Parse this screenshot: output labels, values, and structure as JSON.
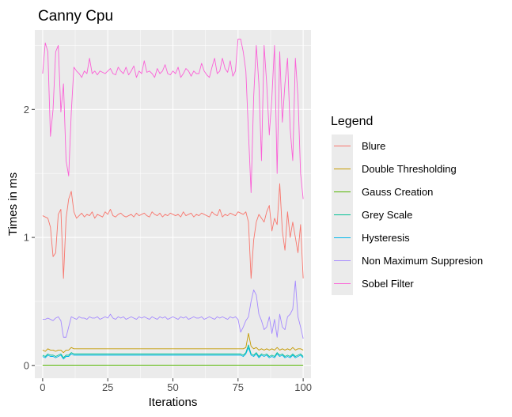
{
  "chart_data": {
    "type": "line",
    "title": "Canny Cpu",
    "xlabel": "Iterations",
    "ylabel": "Times in ms",
    "xlim": [
      -3,
      103
    ],
    "ylim": [
      -0.1,
      2.62
    ],
    "x_ticks": [
      0,
      25,
      50,
      75,
      100
    ],
    "y_ticks": [
      0,
      1,
      2
    ],
    "grid": true,
    "legend": {
      "title": "Legend",
      "position": "right"
    },
    "x": [
      0,
      1,
      2,
      3,
      4,
      5,
      6,
      7,
      8,
      9,
      10,
      11,
      12,
      13,
      14,
      15,
      16,
      17,
      18,
      19,
      20,
      21,
      22,
      23,
      24,
      25,
      26,
      27,
      28,
      29,
      30,
      31,
      32,
      33,
      34,
      35,
      36,
      37,
      38,
      39,
      40,
      41,
      42,
      43,
      44,
      45,
      46,
      47,
      48,
      49,
      50,
      51,
      52,
      53,
      54,
      55,
      56,
      57,
      58,
      59,
      60,
      61,
      62,
      63,
      64,
      65,
      66,
      67,
      68,
      69,
      70,
      71,
      72,
      73,
      74,
      75,
      76,
      77,
      78,
      79,
      80,
      81,
      82,
      83,
      84,
      85,
      86,
      87,
      88,
      89,
      90,
      91,
      92,
      93,
      94,
      95,
      96,
      97,
      98,
      99,
      100
    ],
    "series": [
      {
        "name": "Blure",
        "color": "#F8766D",
        "values": [
          1.17,
          1.16,
          1.15,
          1.08,
          0.85,
          0.88,
          1.18,
          1.22,
          0.68,
          1.15,
          1.3,
          1.36,
          1.2,
          1.15,
          1.17,
          1.19,
          1.16,
          1.18,
          1.17,
          1.2,
          1.15,
          1.18,
          1.17,
          1.16,
          1.2,
          1.18,
          1.22,
          1.17,
          1.16,
          1.18,
          1.19,
          1.17,
          1.16,
          1.17,
          1.18,
          1.16,
          1.19,
          1.17,
          1.18,
          1.19,
          1.17,
          1.16,
          1.2,
          1.18,
          1.17,
          1.19,
          1.16,
          1.18,
          1.17,
          1.19,
          1.18,
          1.17,
          1.18,
          1.16,
          1.2,
          1.17,
          1.18,
          1.19,
          1.16,
          1.18,
          1.17,
          1.19,
          1.18,
          1.17,
          1.16,
          1.2,
          1.18,
          1.17,
          1.22,
          1.16,
          1.18,
          1.17,
          1.19,
          1.18,
          1.17,
          1.2,
          1.19,
          1.18,
          1.2,
          1.12,
          0.68,
          0.98,
          1.12,
          1.18,
          1.15,
          1.12,
          1.2,
          1.25,
          1.05,
          1.15,
          1.1,
          1.42,
          1.05,
          0.9,
          1.2,
          1.0,
          1.12,
          1.0,
          0.88,
          1.1,
          0.68
        ]
      },
      {
        "name": "Double Thresholding",
        "color": "#C49A00",
        "values": [
          0.12,
          0.11,
          0.13,
          0.12,
          0.12,
          0.11,
          0.12,
          0.12,
          0.1,
          0.12,
          0.12,
          0.14,
          0.13,
          0.13,
          0.13,
          0.13,
          0.13,
          0.13,
          0.13,
          0.13,
          0.13,
          0.13,
          0.13,
          0.13,
          0.13,
          0.13,
          0.13,
          0.13,
          0.13,
          0.13,
          0.13,
          0.13,
          0.13,
          0.13,
          0.13,
          0.13,
          0.13,
          0.13,
          0.13,
          0.13,
          0.13,
          0.13,
          0.13,
          0.13,
          0.13,
          0.13,
          0.13,
          0.13,
          0.13,
          0.13,
          0.13,
          0.13,
          0.13,
          0.13,
          0.13,
          0.13,
          0.13,
          0.13,
          0.13,
          0.13,
          0.13,
          0.13,
          0.13,
          0.13,
          0.13,
          0.13,
          0.13,
          0.13,
          0.13,
          0.13,
          0.13,
          0.13,
          0.13,
          0.13,
          0.13,
          0.13,
          0.13,
          0.13,
          0.14,
          0.25,
          0.15,
          0.13,
          0.14,
          0.12,
          0.13,
          0.12,
          0.13,
          0.12,
          0.13,
          0.12,
          0.14,
          0.12,
          0.13,
          0.12,
          0.13,
          0.12,
          0.14,
          0.12,
          0.13,
          0.13,
          0.12
        ]
      },
      {
        "name": "Gauss Creation",
        "color": "#53B400",
        "values": [
          0.002,
          0.002,
          0.002,
          0.002,
          0.002,
          0.002,
          0.002,
          0.002,
          0.002,
          0.002,
          0.002,
          0.002,
          0.002,
          0.002,
          0.002,
          0.002,
          0.002,
          0.002,
          0.002,
          0.002,
          0.002,
          0.002,
          0.002,
          0.002,
          0.002,
          0.002,
          0.002,
          0.002,
          0.002,
          0.002,
          0.002,
          0.002,
          0.002,
          0.002,
          0.002,
          0.002,
          0.002,
          0.002,
          0.002,
          0.002,
          0.002,
          0.002,
          0.002,
          0.002,
          0.002,
          0.002,
          0.002,
          0.002,
          0.002,
          0.002,
          0.002,
          0.002,
          0.002,
          0.002,
          0.002,
          0.002,
          0.002,
          0.002,
          0.002,
          0.002,
          0.002,
          0.002,
          0.002,
          0.002,
          0.002,
          0.002,
          0.002,
          0.002,
          0.002,
          0.002,
          0.002,
          0.002,
          0.002,
          0.002,
          0.002,
          0.002,
          0.002,
          0.002,
          0.002,
          0.002,
          0.002,
          0.002,
          0.002,
          0.002,
          0.002,
          0.002,
          0.002,
          0.002,
          0.002,
          0.002,
          0.002,
          0.002,
          0.002,
          0.002,
          0.002,
          0.002,
          0.002,
          0.002,
          0.002,
          0.002,
          0.002
        ]
      },
      {
        "name": "Grey Scale",
        "color": "#00C094",
        "values": [
          0.08,
          0.07,
          0.09,
          0.08,
          0.08,
          0.07,
          0.08,
          0.09,
          0.06,
          0.08,
          0.08,
          0.1,
          0.09,
          0.09,
          0.09,
          0.09,
          0.09,
          0.09,
          0.09,
          0.09,
          0.09,
          0.09,
          0.09,
          0.09,
          0.09,
          0.09,
          0.09,
          0.09,
          0.09,
          0.09,
          0.09,
          0.09,
          0.09,
          0.09,
          0.09,
          0.09,
          0.09,
          0.09,
          0.09,
          0.09,
          0.09,
          0.09,
          0.09,
          0.09,
          0.09,
          0.09,
          0.09,
          0.09,
          0.09,
          0.09,
          0.09,
          0.09,
          0.09,
          0.09,
          0.09,
          0.09,
          0.09,
          0.09,
          0.09,
          0.09,
          0.09,
          0.09,
          0.09,
          0.09,
          0.09,
          0.09,
          0.09,
          0.09,
          0.09,
          0.09,
          0.09,
          0.09,
          0.09,
          0.09,
          0.09,
          0.09,
          0.09,
          0.08,
          0.1,
          0.16,
          0.09,
          0.08,
          0.1,
          0.07,
          0.09,
          0.08,
          0.09,
          0.07,
          0.08,
          0.07,
          0.1,
          0.08,
          0.09,
          0.07,
          0.08,
          0.07,
          0.09,
          0.07,
          0.08,
          0.09,
          0.07
        ]
      },
      {
        "name": "Hysteresis",
        "color": "#00B6EB",
        "values": [
          0.07,
          0.06,
          0.08,
          0.07,
          0.07,
          0.06,
          0.07,
          0.08,
          0.05,
          0.07,
          0.07,
          0.09,
          0.08,
          0.08,
          0.08,
          0.08,
          0.08,
          0.08,
          0.08,
          0.08,
          0.08,
          0.08,
          0.08,
          0.08,
          0.08,
          0.08,
          0.08,
          0.08,
          0.08,
          0.08,
          0.08,
          0.08,
          0.08,
          0.08,
          0.08,
          0.08,
          0.08,
          0.08,
          0.08,
          0.08,
          0.08,
          0.08,
          0.08,
          0.08,
          0.08,
          0.08,
          0.08,
          0.08,
          0.08,
          0.08,
          0.08,
          0.08,
          0.08,
          0.08,
          0.08,
          0.08,
          0.08,
          0.08,
          0.08,
          0.08,
          0.08,
          0.08,
          0.08,
          0.08,
          0.08,
          0.08,
          0.08,
          0.08,
          0.08,
          0.08,
          0.08,
          0.08,
          0.08,
          0.08,
          0.08,
          0.08,
          0.08,
          0.07,
          0.09,
          0.14,
          0.08,
          0.07,
          0.09,
          0.06,
          0.08,
          0.07,
          0.08,
          0.06,
          0.07,
          0.06,
          0.09,
          0.07,
          0.08,
          0.06,
          0.07,
          0.06,
          0.08,
          0.06,
          0.07,
          0.08,
          0.06
        ]
      },
      {
        "name": "Non Maximum Suppresion",
        "color": "#A58AFF",
        "values": [
          0.36,
          0.36,
          0.37,
          0.36,
          0.35,
          0.37,
          0.38,
          0.35,
          0.22,
          0.22,
          0.3,
          0.38,
          0.37,
          0.36,
          0.38,
          0.37,
          0.37,
          0.36,
          0.38,
          0.37,
          0.37,
          0.38,
          0.36,
          0.37,
          0.38,
          0.37,
          0.4,
          0.37,
          0.36,
          0.38,
          0.37,
          0.38,
          0.36,
          0.37,
          0.38,
          0.37,
          0.36,
          0.38,
          0.37,
          0.38,
          0.37,
          0.36,
          0.38,
          0.37,
          0.36,
          0.38,
          0.37,
          0.38,
          0.36,
          0.37,
          0.38,
          0.37,
          0.36,
          0.38,
          0.37,
          0.38,
          0.36,
          0.37,
          0.38,
          0.37,
          0.37,
          0.38,
          0.36,
          0.37,
          0.38,
          0.37,
          0.36,
          0.38,
          0.37,
          0.38,
          0.37,
          0.36,
          0.38,
          0.37,
          0.38,
          0.36,
          0.26,
          0.3,
          0.35,
          0.38,
          0.5,
          0.59,
          0.55,
          0.4,
          0.35,
          0.28,
          0.3,
          0.38,
          0.25,
          0.36,
          0.22,
          0.4,
          0.3,
          0.28,
          0.38,
          0.4,
          0.44,
          0.66,
          0.38,
          0.3,
          0.21
        ]
      },
      {
        "name": "Sobel Filter",
        "color": "#FB61D7",
        "values": [
          2.28,
          2.52,
          2.45,
          1.79,
          2.0,
          2.45,
          2.5,
          1.98,
          2.2,
          1.6,
          1.48,
          1.98,
          2.33,
          2.3,
          2.28,
          2.25,
          2.3,
          2.28,
          2.4,
          2.28,
          2.3,
          2.27,
          2.3,
          2.29,
          2.28,
          2.3,
          2.32,
          2.28,
          2.27,
          2.33,
          2.3,
          2.28,
          2.33,
          2.27,
          2.3,
          2.34,
          2.25,
          2.3,
          2.28,
          2.38,
          2.29,
          2.3,
          2.28,
          2.25,
          2.32,
          2.28,
          2.3,
          2.35,
          2.28,
          2.27,
          2.3,
          2.28,
          2.33,
          2.25,
          2.28,
          2.32,
          2.3,
          2.26,
          2.3,
          2.28,
          2.28,
          2.36,
          2.3,
          2.27,
          2.25,
          2.33,
          2.4,
          2.28,
          2.3,
          2.4,
          2.32,
          2.29,
          2.38,
          2.26,
          2.3,
          2.55,
          2.55,
          2.45,
          2.3,
          1.82,
          1.35,
          2.1,
          2.5,
          2.2,
          1.6,
          2.5,
          2.2,
          1.8,
          2.1,
          2.5,
          1.5,
          2.45,
          1.9,
          2.2,
          2.4,
          1.85,
          1.6,
          2.4,
          2.1,
          1.5,
          1.3
        ]
      }
    ]
  }
}
